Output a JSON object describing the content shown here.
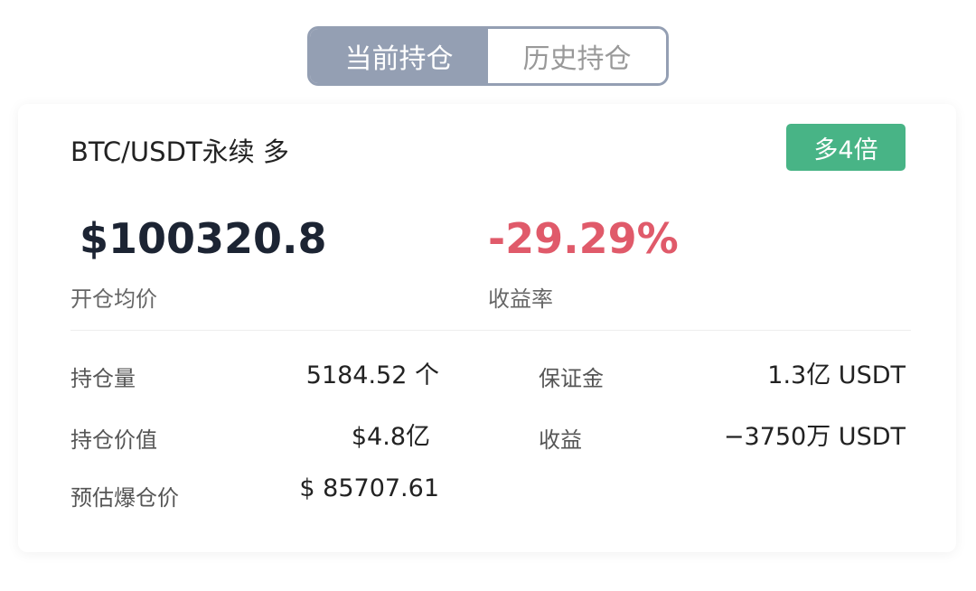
{
  "tabs": [
    {
      "label": "当前持仓",
      "active": true
    },
    {
      "label": "历史持仓",
      "active": false
    }
  ],
  "position": {
    "title": "BTC/USDT永续 多",
    "badge": "多4倍",
    "entry_price": "$100320.8",
    "entry_price_label": "开仓均价",
    "roi": "-29.29%",
    "roi_label": "收益率",
    "details": {
      "size_label": "持仓量",
      "size": "5184.52 个",
      "value_label": "持仓价值",
      "value": "$4.8亿",
      "liq_label": "预估爆仓价",
      "liq": "$ 85707.61",
      "margin_label": "保证金",
      "margin": "1.3亿 USDT",
      "pnl_label": "收益",
      "pnl": "−3750万 USDT"
    }
  },
  "colors": {
    "accent": "#949fb3",
    "long": "#48b486",
    "loss": "#e05a6a"
  }
}
